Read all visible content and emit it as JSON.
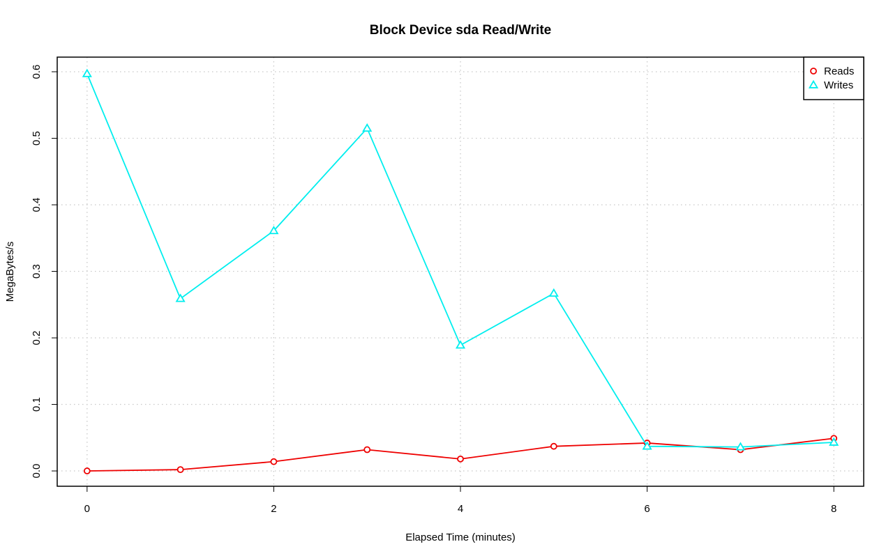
{
  "chart_data": {
    "type": "line",
    "title": "Block Device sda Read/Write",
    "xlabel": "Elapsed Time (minutes)",
    "ylabel": "MegaBytes/s",
    "xlim": [
      -0.32,
      8.32
    ],
    "ylim": [
      -0.023,
      0.622
    ],
    "xticks": [
      0,
      2,
      4,
      6,
      8
    ],
    "yticks": [
      0.0,
      0.1,
      0.2,
      0.3,
      0.4,
      0.5,
      0.6
    ],
    "xtick_labels": [
      "0",
      "2",
      "4",
      "6",
      "8"
    ],
    "ytick_labels": [
      "0.0",
      "0.1",
      "0.2",
      "0.3",
      "0.4",
      "0.5",
      "0.6"
    ],
    "grid": true,
    "legend_position": "top-right",
    "x": [
      0,
      1,
      2,
      3,
      4,
      5,
      6,
      7,
      8
    ],
    "series": [
      {
        "name": "Reads",
        "color": "#ee0000",
        "marker": "circle",
        "values": [
          0.0,
          0.002,
          0.014,
          0.032,
          0.018,
          0.037,
          0.042,
          0.032,
          0.049
        ]
      },
      {
        "name": "Writes",
        "color": "#00eeee",
        "marker": "triangle",
        "values": [
          0.597,
          0.259,
          0.361,
          0.515,
          0.189,
          0.267,
          0.037,
          0.036,
          0.043
        ]
      }
    ]
  }
}
